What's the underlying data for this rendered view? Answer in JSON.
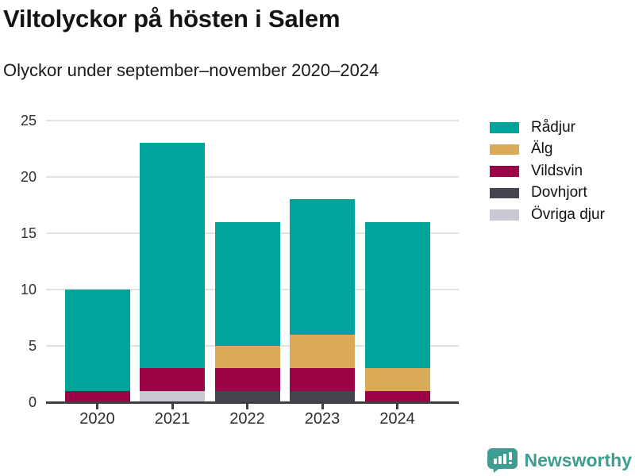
{
  "header": {
    "title": "Viltolyckor på hösten i Salem",
    "subtitle": "Olyckor under september–november 2020–2024"
  },
  "chart_data": {
    "type": "bar",
    "stacked": true,
    "title": "Viltolyckor på hösten i Salem",
    "subtitle": "Olyckor under september–november 2020–2024",
    "categories": [
      "2020",
      "2021",
      "2022",
      "2023",
      "2024"
    ],
    "series": [
      {
        "name": "Rådjur",
        "color": "#00a49a",
        "values": [
          9,
          20,
          11,
          12,
          13
        ]
      },
      {
        "name": "Älg",
        "color": "#d9ab57",
        "values": [
          0,
          0,
          2,
          3,
          2
        ]
      },
      {
        "name": "Vildsvin",
        "color": "#9b0446",
        "values": [
          1,
          2,
          2,
          2,
          1
        ]
      },
      {
        "name": "Dovhjort",
        "color": "#45444f",
        "values": [
          0,
          0,
          1,
          1,
          0
        ]
      },
      {
        "name": "Övriga djur",
        "color": "#c9c7d2",
        "values": [
          0,
          1,
          0,
          0,
          0
        ]
      }
    ],
    "stack_order_bottom_to_top": [
      "Övriga djur",
      "Dovhjort",
      "Vildsvin",
      "Älg",
      "Rådjur"
    ],
    "y_ticks": [
      0,
      5,
      10,
      15,
      20,
      25
    ],
    "ylim": [
      0,
      25
    ],
    "xlabel": "",
    "ylabel": "",
    "grid": "horizontal",
    "legend_position": "right",
    "colors": {
      "gridline": "#e2e2e2",
      "axis": "#3f3f3f",
      "tick_label": "#2e2e2e"
    }
  },
  "footer": {
    "brand": "Newsworthy",
    "brand_color": "#3f9c90",
    "brand_icon": "bar-chart-speech-bubble-icon"
  }
}
